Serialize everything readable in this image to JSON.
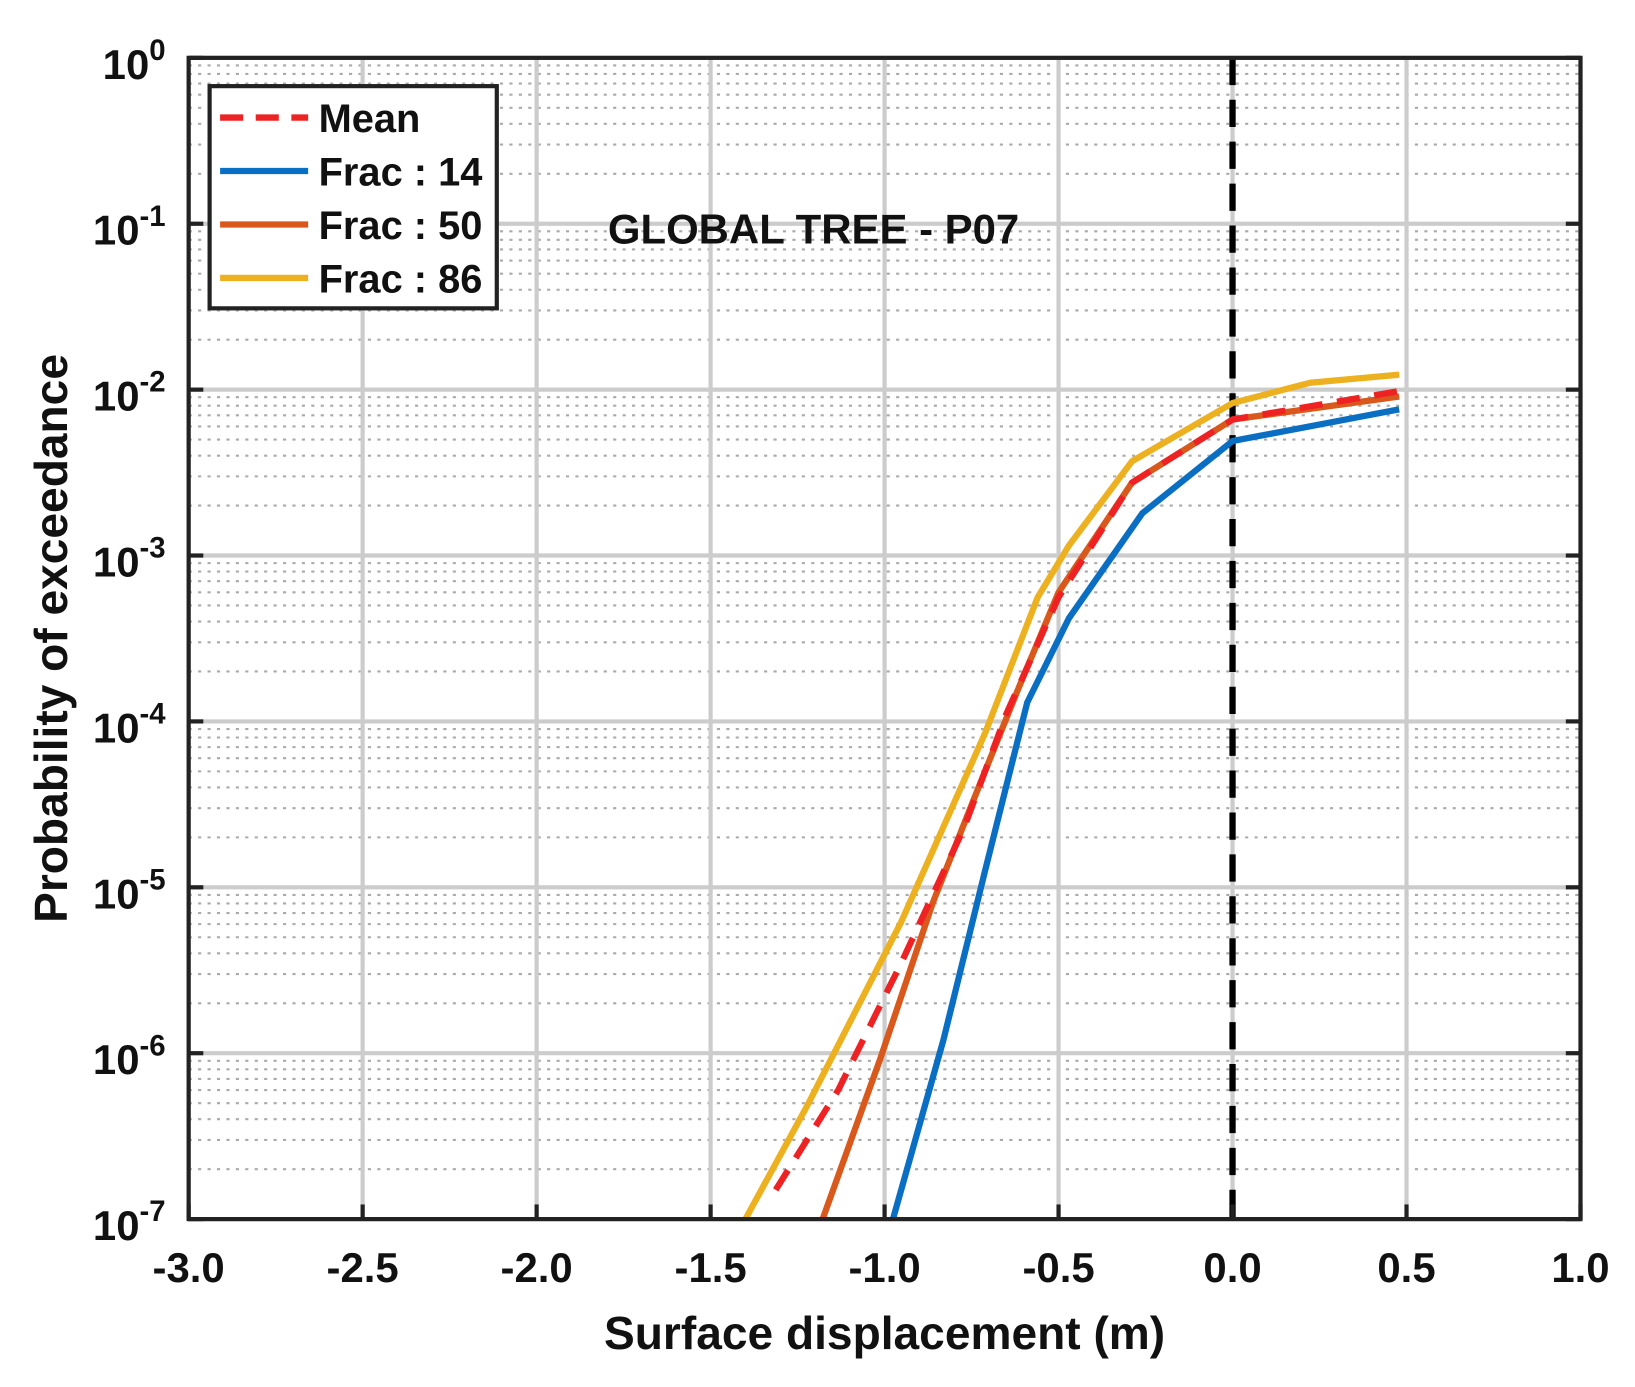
{
  "chart_data": {
    "type": "line",
    "title": "GLOBAL TREE - P07",
    "xlabel": "Surface displacement (m)",
    "ylabel": "Probability of exceedance",
    "xlim": [
      -3.0,
      1.0
    ],
    "ylim": [
      1e-07,
      1
    ],
    "yscale": "log",
    "grid": true,
    "minor_grid": true,
    "legend_placement": "top-left",
    "x_ticks": [
      "-3.0",
      "-2.5",
      "-2.0",
      "-1.5",
      "-1.0",
      "-0.5",
      "0.0",
      "0.5",
      "1.0"
    ],
    "y_ticks": [
      {
        "base": "10",
        "exp": "0"
      },
      {
        "base": "10",
        "exp": "-1"
      },
      {
        "base": "10",
        "exp": "-2"
      },
      {
        "base": "10",
        "exp": "-3"
      },
      {
        "base": "10",
        "exp": "-4"
      },
      {
        "base": "10",
        "exp": "-5"
      },
      {
        "base": "10",
        "exp": "-6"
      },
      {
        "base": "10",
        "exp": "-7"
      }
    ],
    "reference_line": {
      "x": 0.0,
      "style": "dashed",
      "color": "#000000"
    },
    "series": [
      {
        "name": "Mean",
        "color": "#ee2222",
        "style": "dashed",
        "x": [
          -1.313,
          -1.133,
          -0.952,
          -0.771,
          -0.651,
          -0.5,
          -0.289,
          0.0,
          0.479
        ],
        "y": [
          1.5e-07,
          6e-07,
          3.5e-06,
          2.3e-05,
          0.00011,
          0.00056,
          0.00275,
          0.0066,
          0.0098
        ]
      },
      {
        "name": "Frac : 14",
        "color": "#0a6fc2",
        "style": "solid",
        "x": [
          -0.976,
          -0.831,
          -0.711,
          -0.59,
          -0.47,
          -0.259,
          0.0,
          0.479
        ],
        "y": [
          1e-07,
          1.2e-06,
          1.26e-05,
          0.00013,
          0.00042,
          0.0018,
          0.0049,
          0.0076
        ]
      },
      {
        "name": "Frac : 50",
        "color": "#d9581c",
        "style": "solid",
        "x": [
          -1.178,
          -1.012,
          -0.861,
          -0.741,
          -0.62,
          -0.5,
          -0.289,
          0.0,
          0.479
        ],
        "y": [
          1e-07,
          9.3e-07,
          8.1e-06,
          3.5e-05,
          0.00015,
          0.0006,
          0.00275,
          0.0066,
          0.0091
        ]
      },
      {
        "name": "Frac : 86",
        "color": "#edb120",
        "style": "solid",
        "x": [
          -1.4,
          -1.223,
          -0.952,
          -0.711,
          -0.56,
          -0.47,
          -0.289,
          0.0,
          0.223,
          0.479
        ],
        "y": [
          1e-07,
          4.8e-07,
          6.2e-06,
          8.5e-05,
          0.00056,
          0.00115,
          0.0037,
          0.0083,
          0.011,
          0.0123
        ]
      }
    ]
  }
}
